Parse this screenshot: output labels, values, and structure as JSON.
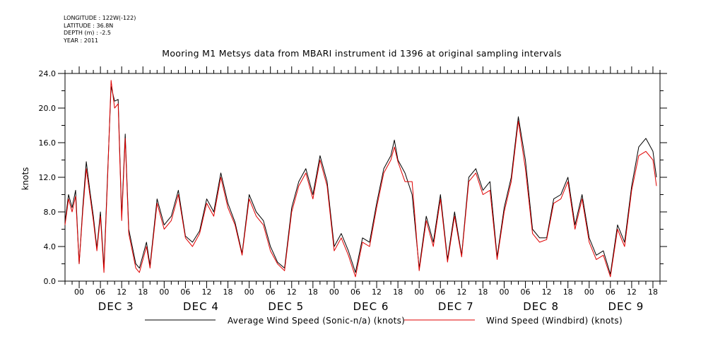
{
  "metadata": {
    "longitude": "LONGITUDE : 122W(-122)",
    "latitude": "LATITUDE : 36.8N",
    "depth": "DEPTH (m) : -2.5",
    "year": "YEAR : 2011"
  },
  "chart_data": {
    "type": "line",
    "title": "Mooring M1 Metsys data from MBARI instrument id 1396 at original sampling intervals",
    "xlabel": "",
    "ylabel": "knots",
    "ylim": [
      0,
      24
    ],
    "yticks": [
      "0.0",
      "4.0",
      "8.0",
      "12.0",
      "16.0",
      "20.0",
      "24.0"
    ],
    "xlim_hours": [
      -4,
      164
    ],
    "hour_tick_labels": [
      "00",
      "06",
      "12",
      "18",
      "00",
      "06",
      "12",
      "18",
      "00",
      "06",
      "12",
      "18",
      "00",
      "06",
      "12",
      "18",
      "00",
      "06",
      "12",
      "18",
      "00",
      "06",
      "12",
      "18",
      "00",
      "06",
      "12",
      "18"
    ],
    "day_labels": [
      "DEC 3",
      "DEC 4",
      "DEC 5",
      "DEC 6",
      "DEC 7",
      "DEC 8",
      "DEC 9"
    ],
    "grid": false,
    "legend_position": "bottom",
    "series": [
      {
        "name": "Average Wind Speed (Sonic-n/a) (knots)",
        "color": "#000000",
        "x_hours": [
          -4,
          -3,
          -2,
          -1,
          0,
          1,
          2,
          3,
          4,
          5,
          6,
          7,
          8,
          9,
          10,
          11,
          12,
          13,
          14,
          15,
          16,
          17,
          18,
          19,
          20,
          22,
          24,
          26,
          28,
          30,
          32,
          34,
          36,
          38,
          40,
          42,
          44,
          46,
          48,
          50,
          52,
          54,
          56,
          58,
          60,
          62,
          64,
          66,
          68,
          70,
          72,
          74,
          76,
          78,
          80,
          82,
          84,
          86,
          88,
          89,
          90,
          92,
          94,
          96,
          98,
          100,
          102,
          104,
          106,
          108,
          110,
          112,
          114,
          116,
          118,
          120,
          122,
          124,
          126,
          128,
          130,
          132,
          134,
          136,
          138,
          140,
          142,
          144,
          146,
          148,
          150,
          152,
          154,
          156,
          158,
          160,
          162,
          163
        ],
        "values": [
          6.8,
          10.0,
          8.5,
          10.5,
          2.0,
          8.5,
          13.8,
          10.5,
          7.5,
          3.8,
          8.0,
          1.5,
          12.0,
          22.5,
          20.8,
          21.0,
          7.5,
          17.0,
          6.0,
          4.0,
          2.0,
          1.5,
          3.0,
          4.5,
          1.8,
          9.5,
          6.5,
          7.5,
          10.5,
          5.2,
          4.5,
          5.8,
          9.5,
          8.0,
          12.5,
          9.0,
          6.8,
          3.2,
          10.0,
          8.0,
          7.0,
          4.0,
          2.2,
          1.5,
          8.5,
          11.5,
          13.0,
          10.0,
          14.5,
          11.5,
          4.0,
          5.5,
          3.5,
          1.0,
          5.0,
          4.5,
          9.0,
          13.0,
          14.5,
          16.3,
          14.0,
          12.5,
          10.0,
          1.5,
          7.5,
          4.5,
          10.0,
          2.5,
          8.0,
          3.0,
          12.0,
          13.0,
          10.5,
          11.5,
          2.8,
          8.5,
          12.0,
          19.0,
          14.0,
          6.0,
          5.0,
          5.0,
          9.5,
          10.0,
          12.0,
          6.5,
          10.0,
          5.0,
          3.0,
          3.5,
          0.8,
          6.5,
          4.5,
          11.0,
          15.5,
          16.5,
          15.0,
          12.0
        ]
      },
      {
        "name": "Wind Speed (Windbird) (knots)",
        "color": "#e00000",
        "x_hours": [
          -4,
          -3,
          -2,
          -1,
          0,
          1,
          2,
          3,
          4,
          5,
          6,
          7,
          8,
          9,
          10,
          11,
          12,
          13,
          14,
          15,
          16,
          17,
          18,
          19,
          20,
          22,
          24,
          26,
          28,
          30,
          32,
          34,
          36,
          38,
          40,
          42,
          44,
          46,
          48,
          50,
          52,
          54,
          56,
          58,
          60,
          62,
          64,
          66,
          68,
          70,
          72,
          74,
          76,
          78,
          80,
          82,
          84,
          86,
          88,
          89,
          90,
          92,
          94,
          96,
          98,
          100,
          102,
          104,
          106,
          108,
          110,
          112,
          114,
          116,
          118,
          120,
          122,
          124,
          126,
          128,
          130,
          132,
          134,
          136,
          138,
          140,
          142,
          144,
          146,
          148,
          150,
          152,
          154,
          156,
          158,
          160,
          162,
          163
        ],
        "values": [
          6.5,
          9.5,
          8.0,
          9.8,
          2.0,
          8.0,
          13.0,
          10.0,
          7.0,
          3.5,
          7.5,
          1.0,
          11.5,
          23.2,
          20.0,
          20.5,
          7.0,
          16.5,
          5.5,
          3.5,
          1.5,
          1.0,
          2.5,
          4.0,
          1.5,
          9.0,
          6.0,
          7.0,
          10.0,
          5.0,
          4.0,
          5.5,
          9.0,
          7.5,
          12.0,
          8.5,
          6.5,
          3.0,
          9.5,
          7.5,
          6.5,
          3.5,
          2.0,
          1.2,
          8.0,
          11.0,
          12.5,
          9.5,
          14.0,
          11.0,
          3.5,
          5.0,
          3.0,
          0.5,
          4.5,
          4.0,
          8.5,
          12.5,
          14.0,
          15.5,
          13.8,
          11.5,
          11.5,
          1.2,
          7.0,
          4.0,
          9.5,
          2.2,
          7.5,
          2.8,
          11.5,
          12.5,
          10.0,
          10.5,
          2.5,
          8.0,
          11.5,
          18.5,
          13.0,
          5.5,
          4.5,
          4.8,
          9.0,
          9.5,
          11.5,
          6.0,
          9.5,
          4.5,
          2.5,
          3.0,
          0.5,
          6.0,
          4.0,
          10.5,
          14.5,
          15.0,
          14.0,
          11.0
        ]
      }
    ]
  }
}
